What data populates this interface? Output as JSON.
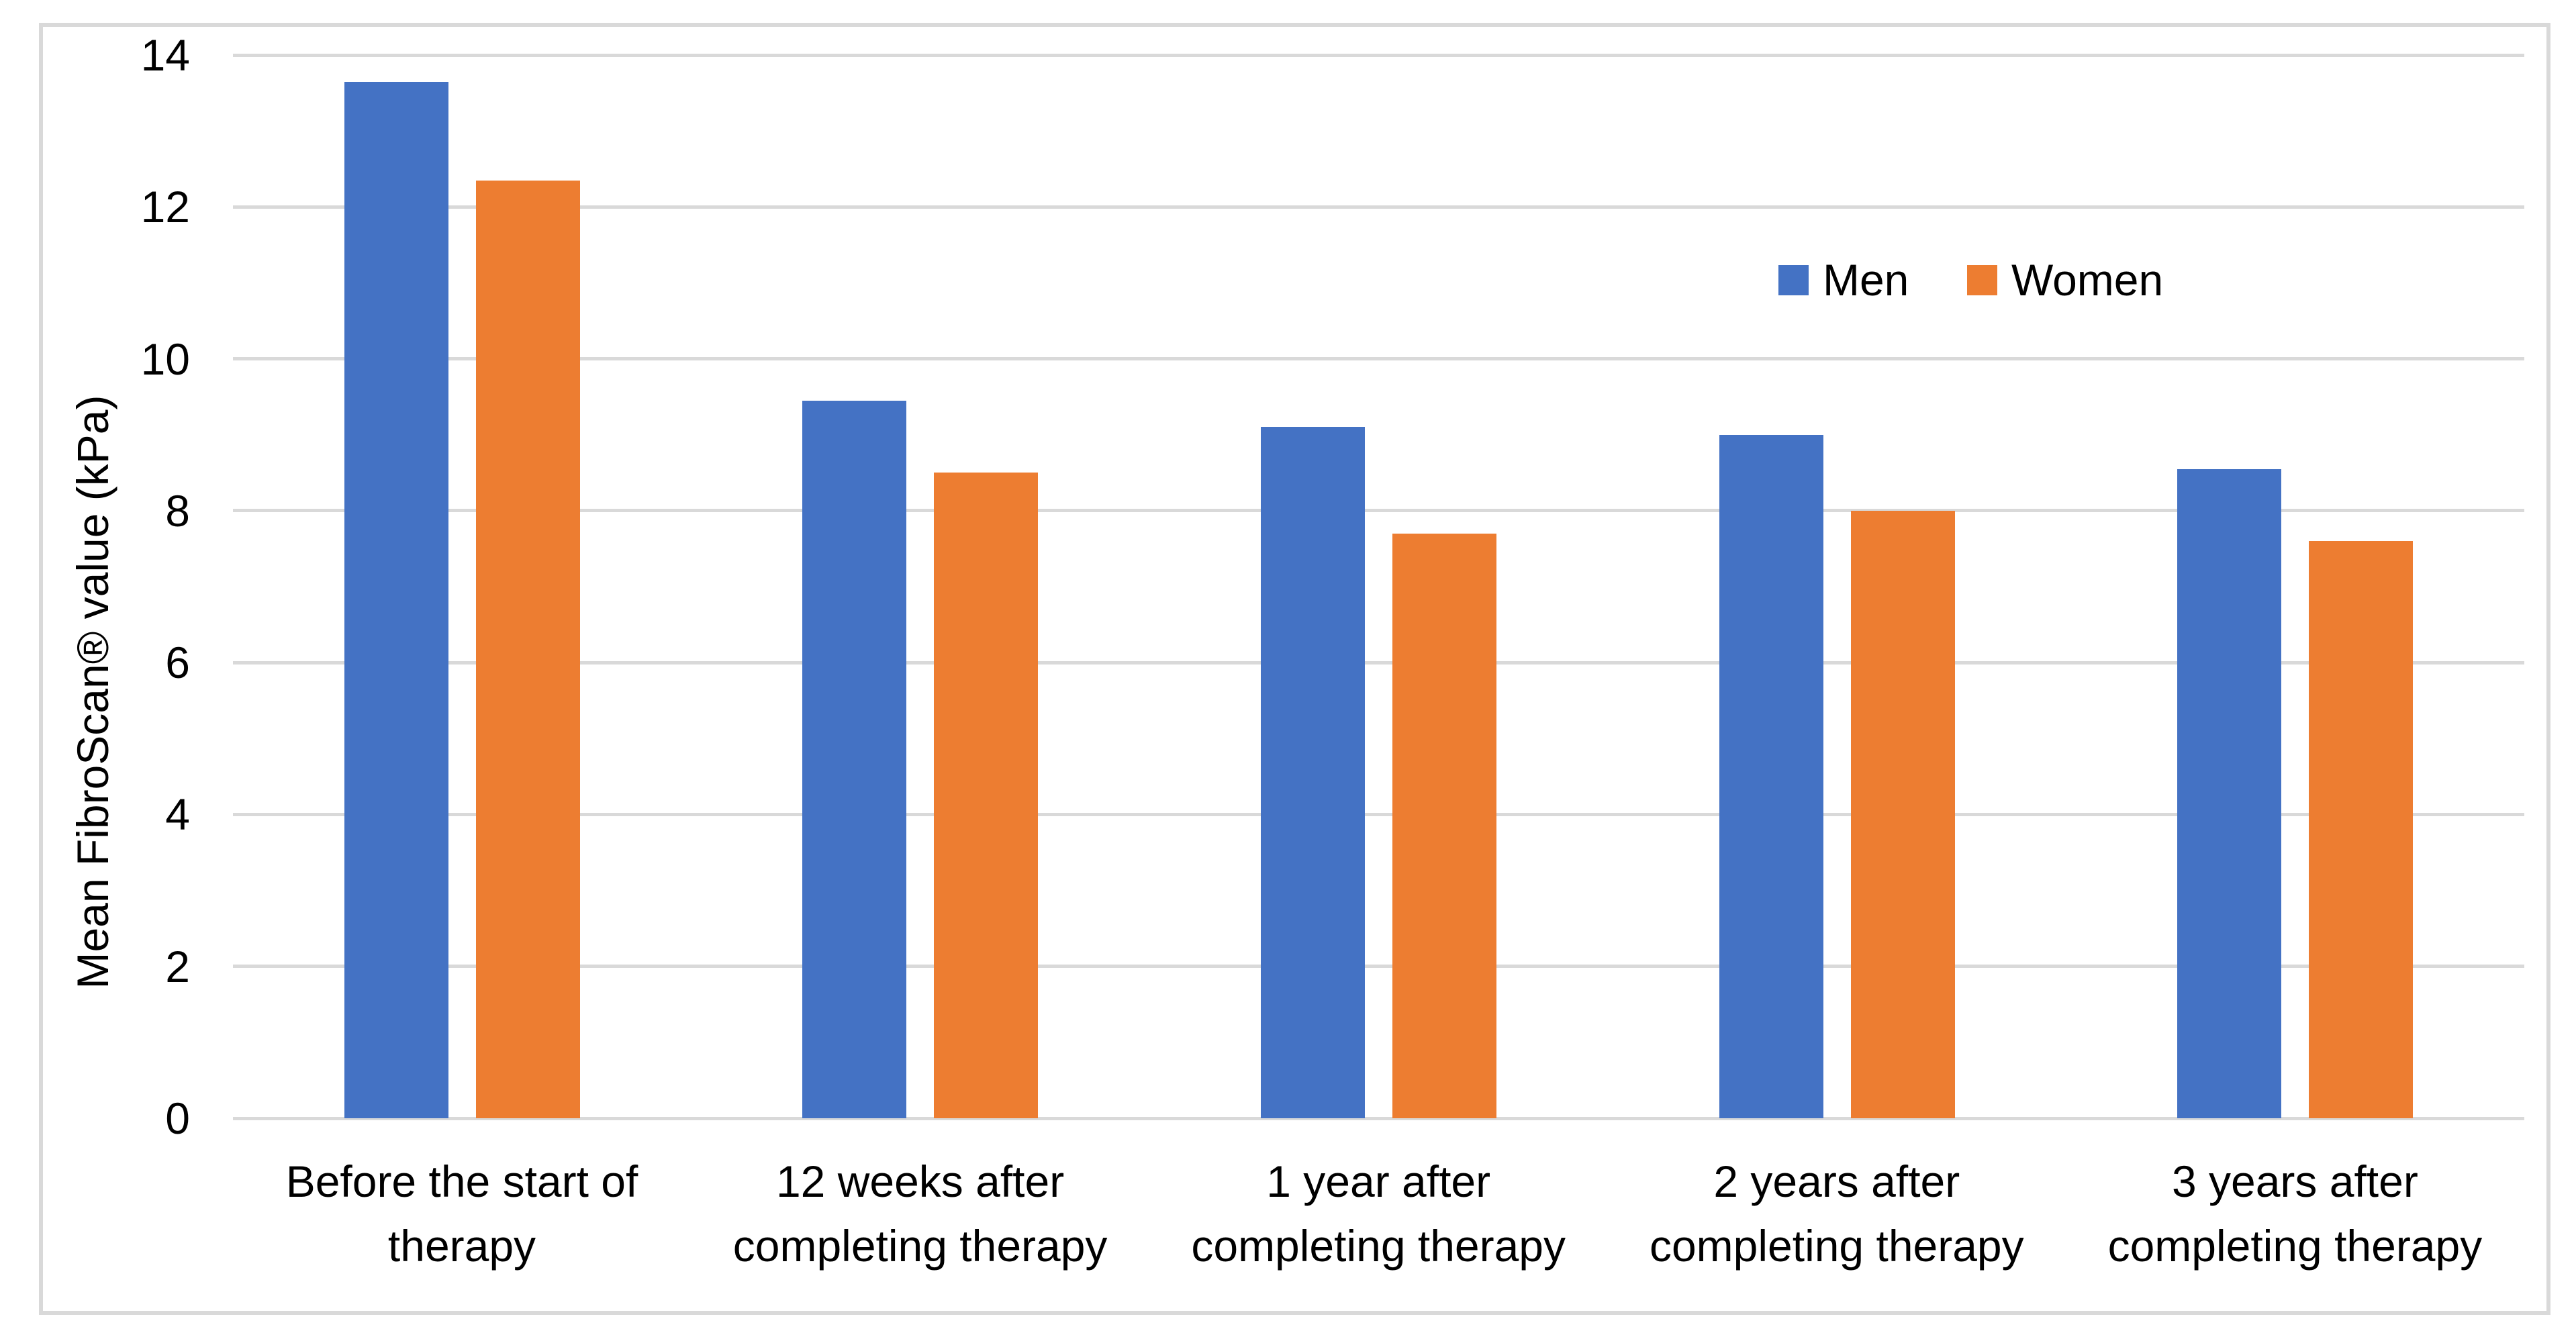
{
  "chart_data": {
    "type": "bar",
    "categories": [
      "Before the start of\ntherapy",
      "12 weeks after\ncompleting therapy",
      "1 year after\ncompleting therapy",
      "2 years after\ncompleting therapy",
      "3 years after\ncompleting therapy"
    ],
    "series": [
      {
        "name": "Men",
        "color": "#4472C4",
        "values": [
          13.65,
          9.45,
          9.1,
          9.0,
          8.55
        ]
      },
      {
        "name": "Women",
        "color": "#ED7D31",
        "values": [
          12.35,
          8.5,
          7.7,
          8.0,
          7.6
        ]
      }
    ],
    "title": "",
    "xlabel": "",
    "ylabel": "Mean FibroScan® value (kPa)",
    "ylim": [
      0,
      14
    ],
    "yticks": [
      0,
      2,
      4,
      6,
      8,
      10,
      12,
      14
    ],
    "grid": true,
    "legend_position": "inside-upper-right",
    "colors": {
      "men": "#4472C4",
      "women": "#ED7D31",
      "gridline": "#D9D9D9",
      "frame_border": "#D9D9D9",
      "text": "#000000",
      "background": "#FFFFFF"
    }
  }
}
